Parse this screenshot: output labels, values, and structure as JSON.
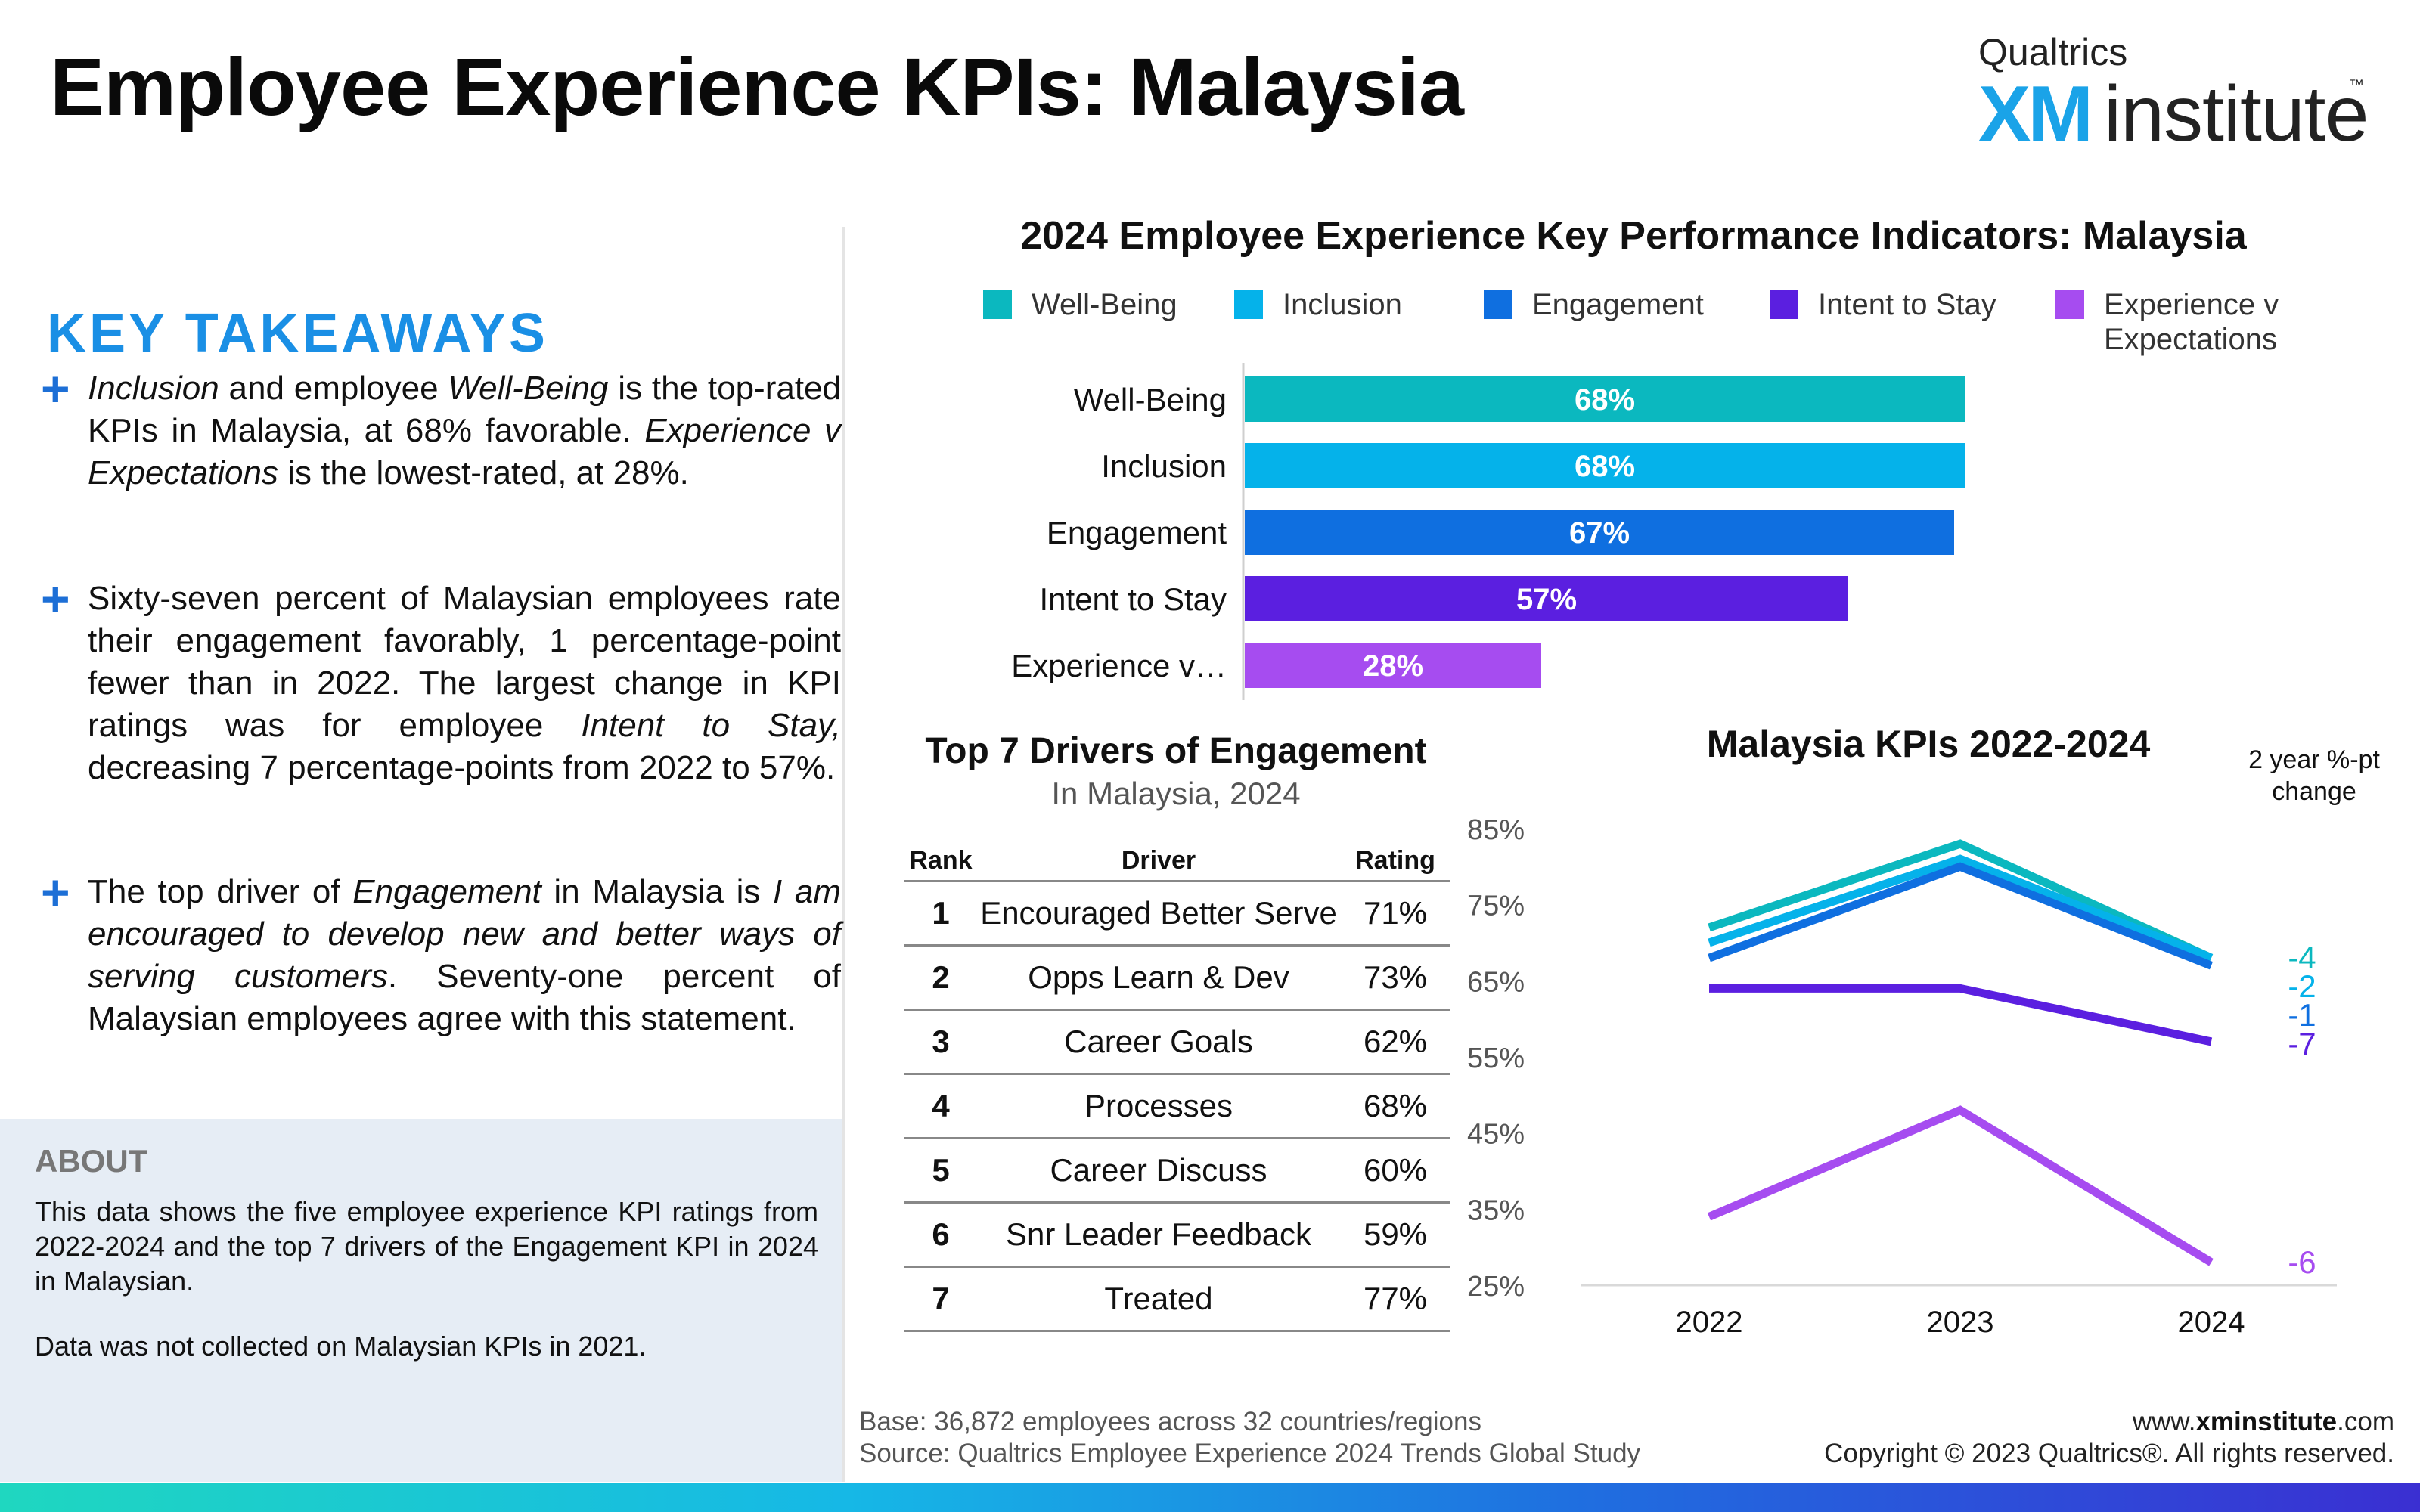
{
  "page_title": "Employee Experience KPIs: Malaysia",
  "logo": {
    "brand_small": "Qualtrics",
    "brand_xm": "XM",
    "brand_word": "institute",
    "tm": "™"
  },
  "key_takeaways": {
    "heading": "KEY TAKEAWAYS",
    "bullets": [
      {
        "parts": [
          {
            "t": "Inclusion",
            "i": true
          },
          {
            "t": " and employee "
          },
          {
            "t": "Well-Being",
            "i": true
          },
          {
            "t": " is the top-rated KPIs in Malaysia, at 68% favorable. "
          },
          {
            "t": "Experience v Expectations",
            "i": true
          },
          {
            "t": " is the lowest-rated, at 28%."
          }
        ]
      },
      {
        "parts": [
          {
            "t": "Sixty-seven percent of Malaysian employees rate their engagement favorably, 1 percentage-point fewer than in 2022. The largest change in KPI ratings was for employee "
          },
          {
            "t": "Intent to Stay,",
            "i": true
          },
          {
            "t": " decreasing 7 percentage-points from 2022 to 57%."
          }
        ]
      },
      {
        "parts": [
          {
            "t": "The top driver of "
          },
          {
            "t": "Engagement",
            "i": true
          },
          {
            "t": " in Malaysia is "
          },
          {
            "t": "I am encouraged to develop new and better ways of serving customers",
            "i": true
          },
          {
            "t": ". Seventy-one percent of Malaysian employees agree with this statement."
          }
        ]
      }
    ]
  },
  "about": {
    "heading": "ABOUT",
    "text": "This data shows the five employee experience KPI ratings from 2022-2024 and the top 7 drivers of the Engagement KPI in 2024 in Malaysian.",
    "note": "Data was not collected on Malaysian KPIs in 2021."
  },
  "colors": {
    "well_being": "#0bb8bf",
    "inclusion": "#05b2ea",
    "engagement": "#0f6fe0",
    "intent_to_stay": "#5b1fe0",
    "experience_v_expectations": "#a64cf0"
  },
  "chart_data": [
    {
      "type": "bar",
      "orientation": "horizontal",
      "title": "2024 Employee Experience Key Performance Indicators: Malaysia",
      "categories": [
        "Well-Being",
        "Inclusion",
        "Engagement",
        "Intent to Stay",
        "Experience v Expectations"
      ],
      "category_tick_labels": [
        "Well-Being",
        "Inclusion",
        "Engagement",
        "Intent to Stay",
        "Experience v…"
      ],
      "values": [
        68,
        68,
        67,
        57,
        28
      ],
      "value_labels": [
        "68%",
        "68%",
        "67%",
        "57%",
        "28%"
      ],
      "legend": [
        "Well-Being",
        "Inclusion",
        "Engagement",
        "Intent to Stay",
        "Experience v Expectations"
      ],
      "legend_placement": "top",
      "xlim": [
        0,
        100
      ],
      "colors": [
        "#0bb8bf",
        "#05b2ea",
        "#0f6fe0",
        "#5b1fe0",
        "#a64cf0"
      ]
    },
    {
      "type": "table",
      "title": "Top 7 Drivers of Engagement",
      "subtitle": "In Malaysia, 2024",
      "columns": [
        "Rank",
        "Driver",
        "Rating"
      ],
      "rows": [
        [
          "1",
          "Encouraged Better Serve",
          "71%"
        ],
        [
          "2",
          "Opps Learn & Dev",
          "73%"
        ],
        [
          "3",
          "Career Goals",
          "62%"
        ],
        [
          "4",
          "Processes",
          "68%"
        ],
        [
          "5",
          "Career Discuss",
          "60%"
        ],
        [
          "6",
          "Snr Leader Feedback",
          "59%"
        ],
        [
          "7",
          "Treated",
          "77%"
        ]
      ]
    },
    {
      "type": "line",
      "title": "Malaysia KPIs 2022-2024",
      "x": [
        "2022",
        "2023",
        "2024"
      ],
      "ylim": [
        25,
        85
      ],
      "yticks": [
        "25%",
        "35%",
        "45%",
        "55%",
        "65%",
        "75%",
        "85%"
      ],
      "change_label": "2 year %-pt change",
      "series": [
        {
          "name": "Well-Being",
          "values": [
            72,
            83,
            68
          ],
          "change": "-4",
          "color": "#0bb8bf"
        },
        {
          "name": "Inclusion",
          "values": [
            70,
            81,
            68
          ],
          "change": "-2",
          "color": "#05b2ea"
        },
        {
          "name": "Engagement",
          "values": [
            68,
            80,
            67
          ],
          "change": "-1",
          "color": "#0f6fe0"
        },
        {
          "name": "Intent to Stay",
          "values": [
            64,
            64,
            57
          ],
          "change": "-7",
          "color": "#5b1fe0"
        },
        {
          "name": "Experience v Expectations",
          "values": [
            34,
            48,
            28
          ],
          "change": "-6",
          "color": "#a64cf0"
        }
      ]
    }
  ],
  "footer": {
    "base": "Base: 36,872 employees across 32 countries/regions",
    "source": "Source: Qualtrics Employee Experience 2024 Trends Global Study",
    "site_prefix": "www.",
    "site_bold": "xminstitute",
    "site_suffix": ".com",
    "copyright": "Copyright © 2023 Qualtrics®. All rights reserved."
  }
}
